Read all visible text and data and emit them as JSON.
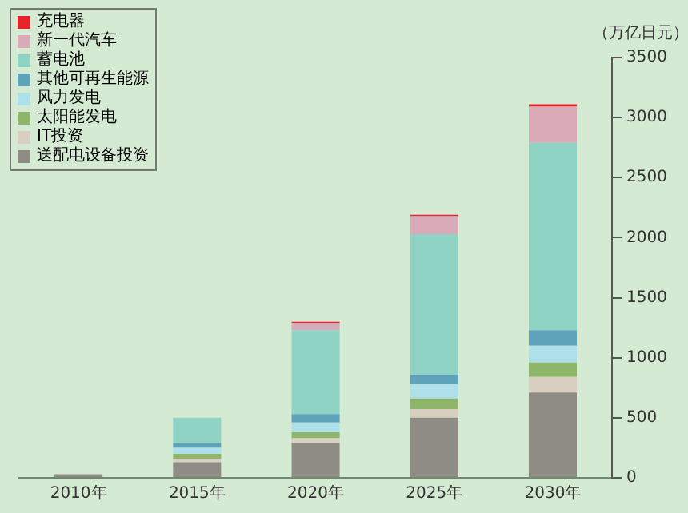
{
  "chart_data": {
    "type": "bar",
    "stacked": true,
    "ylabel": "（万亿日元）",
    "categories": [
      "2010年",
      "2015年",
      "2020年",
      "2025年",
      "2030年"
    ],
    "ylim": [
      0,
      3500
    ],
    "yticks": [
      0,
      500,
      1000,
      1500,
      2000,
      2500,
      3000,
      3500
    ],
    "grid": false,
    "legend": "top left",
    "series": [
      {
        "name": "送配电设备投资",
        "color": "#8f8c86",
        "values": [
          30,
          130,
          290,
          500,
          710
        ]
      },
      {
        "name": "IT投资",
        "color": "#d8cfc0",
        "values": [
          null,
          30,
          40,
          70,
          130
        ]
      },
      {
        "name": "太阳能发电",
        "color": "#8fb56a",
        "values": [
          0,
          40,
          50,
          90,
          120
        ]
      },
      {
        "name": "风力发电",
        "color": "#aee0ea",
        "values": [
          0,
          50,
          80,
          120,
          140
        ]
      },
      {
        "name": "其他可再生能源",
        "color": "#5fa3bb",
        "values": [
          0,
          40,
          70,
          80,
          130
        ]
      },
      {
        "name": "蓄电池",
        "color": "#8fd3c4",
        "values": [
          0,
          210,
          700,
          1170,
          1560
        ]
      },
      {
        "name": "新一代汽车",
        "color": "#d9aab8",
        "values": [
          0,
          0,
          60,
          150,
          300
        ]
      },
      {
        "name": "充电器",
        "color": "#e8232b",
        "values": [
          0,
          0,
          10,
          10,
          20
        ]
      }
    ]
  }
}
